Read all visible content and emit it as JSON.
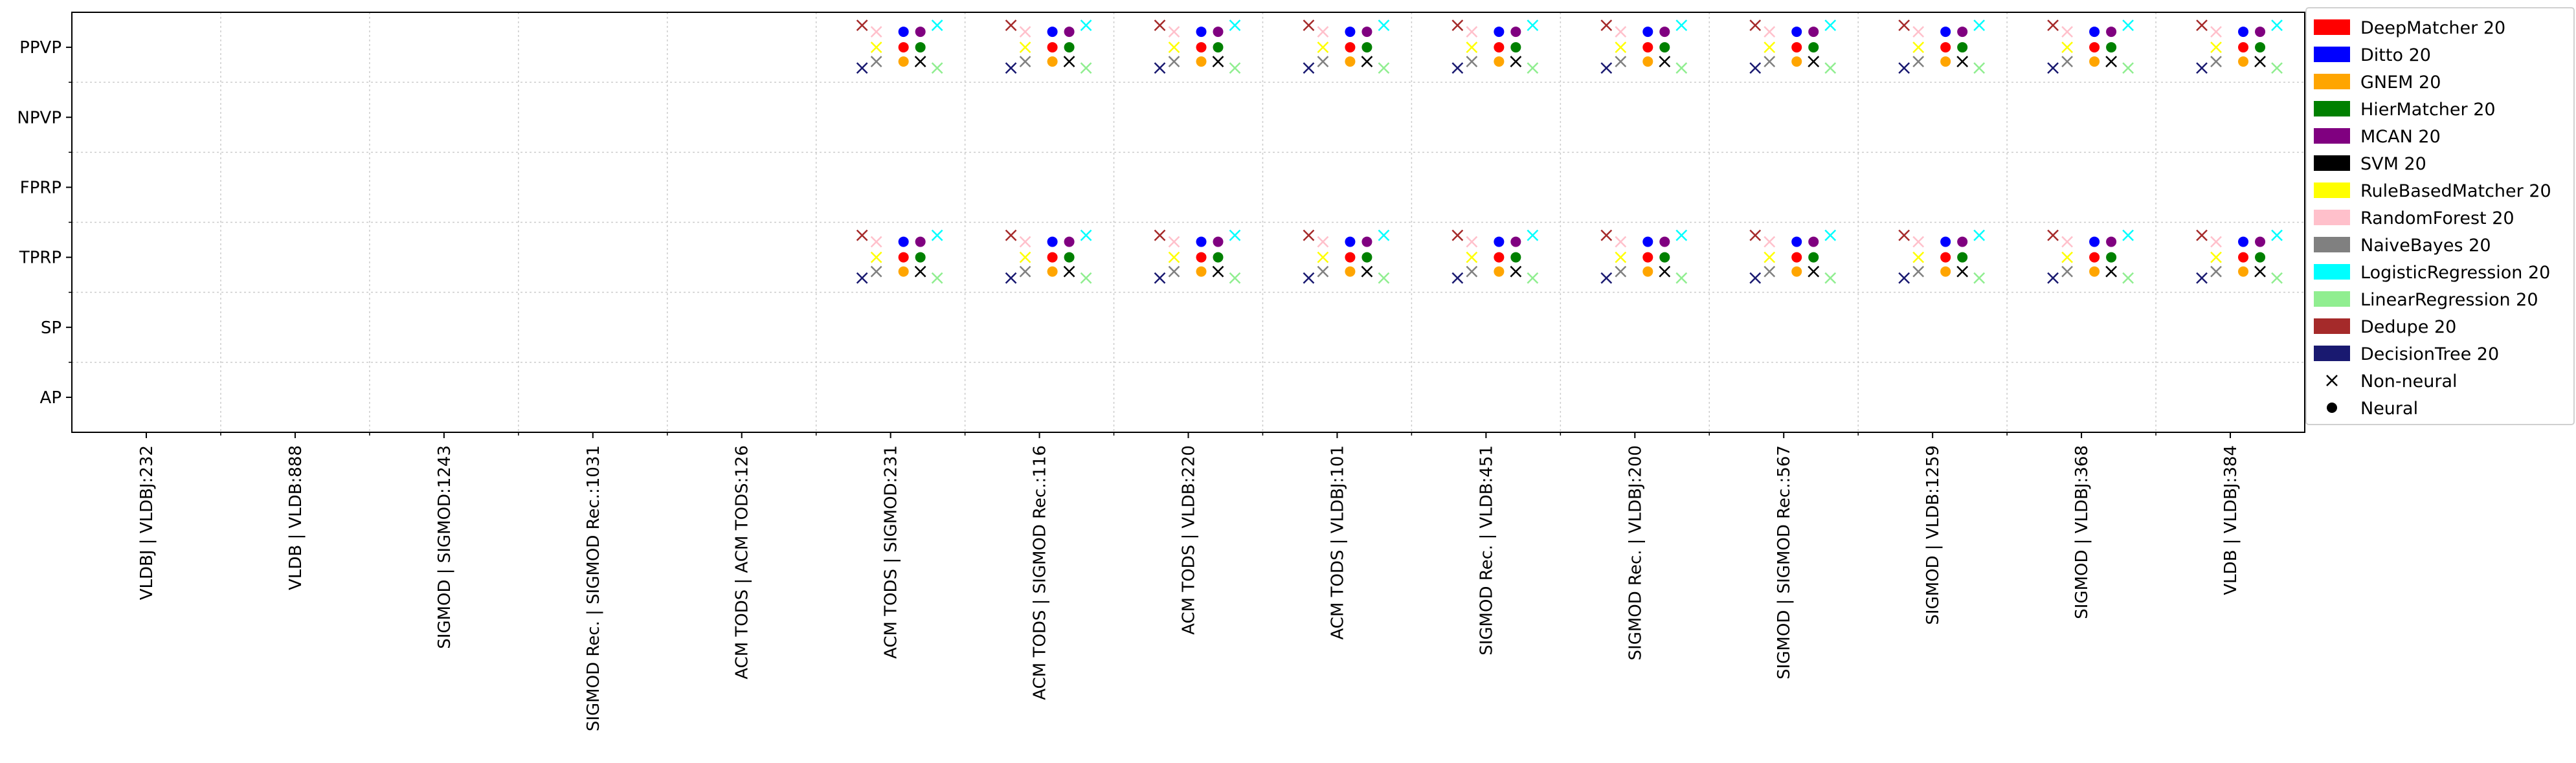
{
  "chart_data": {
    "type": "scatter",
    "title": "",
    "xlabel": "",
    "ylabel": "",
    "grid": true,
    "legend_placement": "upper-right-outside",
    "x_categories": [
      "VLDBJ | VLDBJ:232",
      "VLDB | VLDB:888",
      "SIGMOD | SIGMOD:1243",
      "SIGMOD Rec. | SIGMOD Rec.:1031",
      "ACM TODS | ACM TODS:126",
      "ACM TODS | SIGMOD:231",
      "ACM TODS | SIGMOD Rec.:116",
      "ACM TODS | VLDB:220",
      "ACM TODS | VLDBJ:101",
      "SIGMOD Rec. | VLDB:451",
      "SIGMOD Rec. | VLDBJ:200",
      "SIGMOD | SIGMOD Rec.:567",
      "SIGMOD | VLDB:1259",
      "SIGMOD | VLDBJ:368",
      "VLDB | VLDBJ:384"
    ],
    "y_categories": [
      "PPVP",
      "NPVP",
      "FPRP",
      "TPRP",
      "SP",
      "AP"
    ],
    "series": [
      {
        "name": "DeepMatcher 20",
        "color": "#ff0000",
        "marker": "circle"
      },
      {
        "name": "Ditto 20",
        "color": "#0000ff",
        "marker": "circle"
      },
      {
        "name": "GNEM 20",
        "color": "#ffa500",
        "marker": "circle"
      },
      {
        "name": "HierMatcher 20",
        "color": "#008000",
        "marker": "circle"
      },
      {
        "name": "MCAN 20",
        "color": "#800080",
        "marker": "circle"
      },
      {
        "name": "SVM 20",
        "color": "#000000",
        "marker": "x"
      },
      {
        "name": "RuleBasedMatcher 20",
        "color": "#ffff00",
        "marker": "x"
      },
      {
        "name": "RandomForest 20",
        "color": "#ffc0cb",
        "marker": "x"
      },
      {
        "name": "NaiveBayes 20",
        "color": "#808080",
        "marker": "x"
      },
      {
        "name": "LogisticRegression 20",
        "color": "#00ffff",
        "marker": "x"
      },
      {
        "name": "LinearRegression 20",
        "color": "#90ee90",
        "marker": "x"
      },
      {
        "name": "Dedupe 20",
        "color": "#a52a2a",
        "marker": "x"
      },
      {
        "name": "DecisionTree 20",
        "color": "#191970",
        "marker": "x"
      }
    ],
    "points_present": {
      "x_categories": [
        "ACM TODS | SIGMOD:231",
        "ACM TODS | SIGMOD Rec.:116",
        "ACM TODS | VLDB:220",
        "ACM TODS | VLDBJ:101",
        "SIGMOD Rec. | VLDB:451",
        "SIGMOD Rec. | VLDBJ:200",
        "SIGMOD | SIGMOD Rec.:567",
        "SIGMOD | VLDB:1259",
        "SIGMOD | VLDBJ:368",
        "VLDB | VLDBJ:384"
      ],
      "y_categories": [
        "PPVP",
        "TPRP"
      ],
      "all_series": true
    },
    "marker_legend": [
      {
        "label": "Non-neural",
        "marker": "x"
      },
      {
        "label": "Neural",
        "marker": "circle"
      }
    ]
  }
}
